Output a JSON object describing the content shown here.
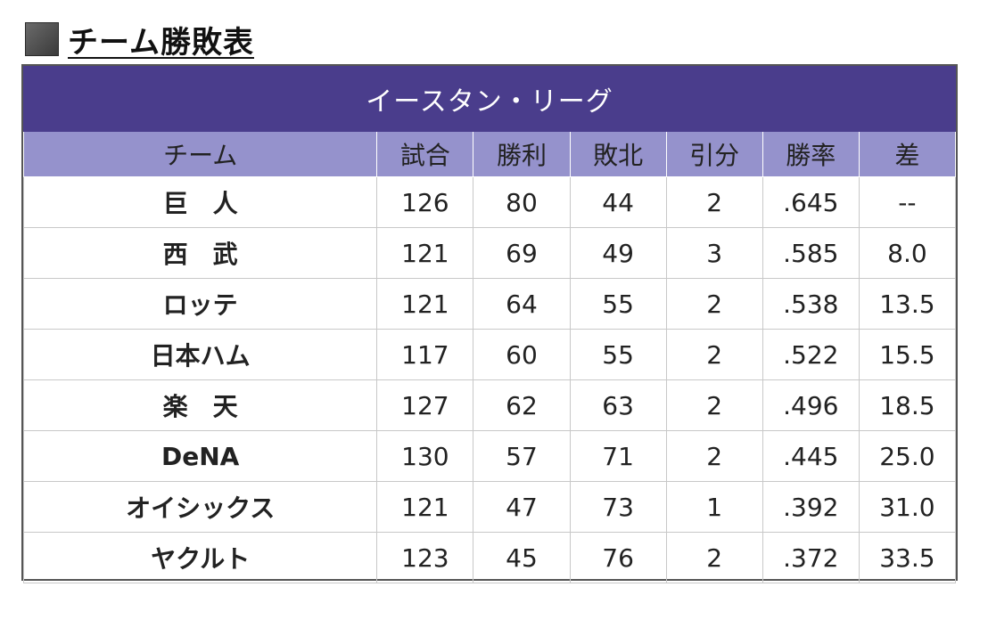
{
  "heading": {
    "title": "チーム勝敗表"
  },
  "table": {
    "league": "イースタン・リーグ",
    "columns": [
      "チーム",
      "試合",
      "勝利",
      "敗北",
      "引分",
      "勝率",
      "差"
    ],
    "rows": [
      [
        "巨　人",
        "126",
        "80",
        "44",
        "2",
        ".645",
        "--"
      ],
      [
        "西　武",
        "121",
        "69",
        "49",
        "3",
        ".585",
        "8.0"
      ],
      [
        "ロッテ",
        "121",
        "64",
        "55",
        "2",
        ".538",
        "13.5"
      ],
      [
        "日本ハム",
        "117",
        "60",
        "55",
        "2",
        ".522",
        "15.5"
      ],
      [
        "楽　天",
        "127",
        "62",
        "63",
        "2",
        ".496",
        "18.5"
      ],
      [
        "DeNA",
        "130",
        "57",
        "71",
        "2",
        ".445",
        "25.0"
      ],
      [
        "オイシックス",
        "121",
        "47",
        "73",
        "1",
        ".392",
        "31.0"
      ],
      [
        "ヤクルト",
        "123",
        "45",
        "76",
        "2",
        ".372",
        "33.5"
      ]
    ]
  },
  "colors": {
    "league_header_bg": "#4a3d8c",
    "column_header_bg": "#9592cc"
  }
}
